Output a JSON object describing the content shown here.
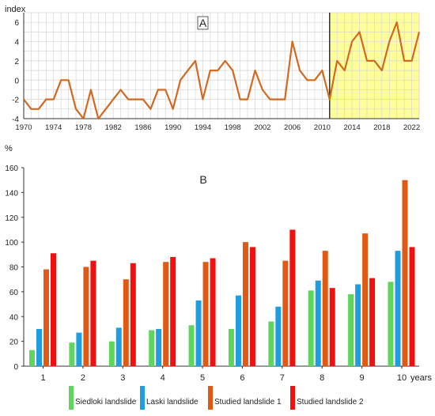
{
  "chart_data": [
    {
      "type": "line",
      "panel_label": "A",
      "ylabel": "index",
      "xlim": [
        1970,
        2023
      ],
      "ylim": [
        -4,
        7
      ],
      "x_ticks": [
        "1970",
        "1974",
        "1978",
        "1982",
        "1986",
        "1990",
        "1994",
        "1998",
        "2002",
        "2006",
        "2010",
        "2014",
        "2018",
        "2022"
      ],
      "y_ticks": [
        "-4",
        "-2",
        "0",
        "2",
        "4",
        "6"
      ],
      "highlight_range": [
        2011,
        2023
      ],
      "highlight_color": "#ffff99",
      "divider_x": 2011,
      "line_color": "#d2691e",
      "grid": true,
      "series": [
        {
          "x": [
            1970,
            1971,
            1972,
            1973,
            1974,
            1975,
            1976,
            1977,
            1978,
            1979,
            1980,
            1981,
            1982,
            1983,
            1984,
            1985,
            1986,
            1987,
            1988,
            1989,
            1990,
            1991,
            1992,
            1993,
            1994,
            1995,
            1996,
            1997,
            1998,
            1999,
            2000,
            2001,
            2002,
            2003,
            2004,
            2005,
            2006,
            2007,
            2008,
            2009,
            2010,
            2011,
            2012,
            2013,
            2014,
            2015,
            2016,
            2017,
            2018,
            2019,
            2020,
            2021,
            2022,
            2023
          ],
          "values": [
            -2,
            -3,
            -3,
            -2,
            -2,
            0,
            0,
            -3,
            -4,
            -1,
            -4,
            -3,
            -2,
            -1,
            -2,
            -2,
            -2,
            -3,
            -1,
            -1,
            -3,
            0,
            1,
            2,
            -2,
            1,
            1,
            2,
            1,
            -2,
            -2,
            1,
            -1,
            -2,
            -2,
            -2,
            4,
            1,
            0,
            0,
            1,
            -2,
            2,
            1,
            4,
            5,
            2,
            2,
            1,
            4,
            6,
            2,
            2,
            5
          ]
        }
      ]
    },
    {
      "type": "bar",
      "panel_label": "B",
      "ylabel": "%",
      "xlabel": "years",
      "ylim": [
        0,
        160
      ],
      "y_ticks": [
        "0",
        "20",
        "40",
        "60",
        "80",
        "100",
        "120",
        "140",
        "160"
      ],
      "categories": [
        "1",
        "2",
        "3",
        "4",
        "5",
        "6",
        "7",
        "8",
        "9",
        "10"
      ],
      "grid": false,
      "legend_position": "bottom",
      "series": [
        {
          "name": "Siedloki landslide",
          "color": "#5ed65e",
          "values": [
            13,
            19,
            20,
            29,
            33,
            30,
            36,
            61,
            58,
            68
          ]
        },
        {
          "name": "Laski landslide",
          "color": "#1e9ee0",
          "values": [
            30,
            27,
            31,
            30,
            53,
            57,
            48,
            69,
            66,
            93
          ]
        },
        {
          "name": "Studied landslide 1",
          "color": "#e05a14",
          "values": [
            78,
            80,
            70,
            84,
            84,
            100,
            85,
            93,
            107,
            150
          ]
        },
        {
          "name": "Studied landslide 2",
          "color": "#f01010",
          "values": [
            91,
            85,
            83,
            88,
            87,
            96,
            110,
            63,
            71,
            96
          ]
        }
      ]
    }
  ]
}
